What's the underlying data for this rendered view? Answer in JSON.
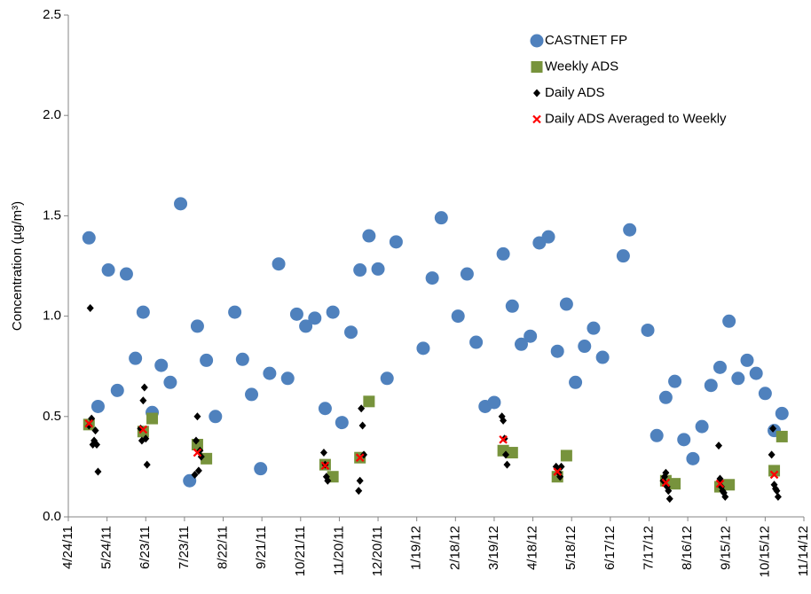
{
  "chart_data": {
    "type": "scatter",
    "y_label": "Concentration (µg/m³)",
    "ylim": [
      0,
      2.5
    ],
    "yticks": [
      {
        "value": 0,
        "label": "0.0"
      },
      0.5,
      {
        "value": 1,
        "label": "1.0"
      },
      1.5,
      {
        "value": 2,
        "label": "2.0"
      },
      2.5
    ],
    "xlim": [
      "2011-04-24",
      "2012-11-14"
    ],
    "xticks": [
      {
        "value": "2011-04-24",
        "label": "4/24/11"
      },
      {
        "value": "2011-05-24",
        "label": "5/24/11"
      },
      {
        "value": "2011-06-23",
        "label": "6/23/11"
      },
      {
        "value": "2011-07-23",
        "label": "7/23/11"
      },
      {
        "value": "2011-08-22",
        "label": "8/22/11"
      },
      {
        "value": "2011-09-21",
        "label": "9/21/11"
      },
      {
        "value": "2011-10-21",
        "label": "10/21/11"
      },
      {
        "value": "2011-11-20",
        "label": "11/20/11"
      },
      {
        "value": "2011-12-20",
        "label": "12/20/11"
      },
      {
        "value": "2012-01-19",
        "label": "1/19/12"
      },
      {
        "value": "2012-02-18",
        "label": "2/18/12"
      },
      {
        "value": "2012-03-19",
        "label": "3/19/12"
      },
      {
        "value": "2012-04-18",
        "label": "4/18/12"
      },
      {
        "value": "2012-05-18",
        "label": "5/18/12"
      },
      {
        "value": "2012-06-17",
        "label": "6/17/12"
      },
      {
        "value": "2012-07-17",
        "label": "7/17/12"
      },
      {
        "value": "2012-08-16",
        "label": "8/16/12"
      },
      {
        "value": "2012-09-15",
        "label": "9/15/12"
      },
      {
        "value": "2012-10-15",
        "label": "10/15/12"
      },
      {
        "value": "2012-11-14",
        "label": "11/14/12"
      }
    ],
    "grid": false,
    "legend": "upper right",
    "series": [
      {
        "name": "CASTNET FP",
        "color": "#4f81bd",
        "marker": "circle",
        "x": [
          "2011-05-10",
          "2011-05-17",
          "2011-05-25",
          "2011-06-01",
          "2011-06-08",
          "2011-06-15",
          "2011-06-21",
          "2011-06-28",
          "2011-07-05",
          "2011-07-12",
          "2011-07-20",
          "2011-07-27",
          "2011-08-02",
          "2011-08-09",
          "2011-08-16",
          "2011-08-31",
          "2011-09-06",
          "2011-09-13",
          "2011-09-20",
          "2011-09-27",
          "2011-10-04",
          "2011-10-11",
          "2011-10-18",
          "2011-10-25",
          "2011-11-01",
          "2011-11-09",
          "2011-11-15",
          "2011-11-22",
          "2011-11-29",
          "2011-12-06",
          "2011-12-13",
          "2011-12-20",
          "2011-12-27",
          "2012-01-03",
          "2012-01-24",
          "2012-01-31",
          "2012-02-07",
          "2012-02-20",
          "2012-02-27",
          "2012-03-05",
          "2012-03-12",
          "2012-03-19",
          "2012-03-26",
          "2012-04-02",
          "2012-04-09",
          "2012-04-16",
          "2012-04-23",
          "2012-04-30",
          "2012-05-07",
          "2012-05-14",
          "2012-05-21",
          "2012-05-28",
          "2012-06-04",
          "2012-06-11",
          "2012-06-27",
          "2012-07-02",
          "2012-07-16",
          "2012-07-23",
          "2012-07-30",
          "2012-08-06",
          "2012-08-13",
          "2012-08-20",
          "2012-08-27",
          "2012-09-03",
          "2012-09-10",
          "2012-09-17",
          "2012-09-24",
          "2012-10-01",
          "2012-10-08",
          "2012-10-15",
          "2012-10-22",
          "2012-10-28"
        ],
        "values": [
          1.39,
          0.55,
          1.23,
          0.63,
          1.21,
          0.79,
          1.02,
          0.52,
          0.755,
          0.67,
          1.56,
          0.18,
          0.95,
          0.78,
          0.5,
          1.02,
          0.785,
          0.61,
          0.24,
          0.715,
          1.26,
          0.69,
          1.01,
          0.95,
          0.99,
          0.54,
          1.02,
          0.47,
          0.92,
          1.23,
          1.4,
          1.235,
          0.69,
          1.37,
          0.84,
          1.19,
          1.49,
          1.0,
          1.21,
          0.87,
          0.55,
          0.57,
          1.31,
          1.05,
          0.86,
          0.9,
          1.365,
          1.395,
          0.825,
          1.06,
          0.67,
          0.85,
          0.94,
          0.795,
          1.3,
          1.43,
          0.93,
          0.405,
          0.595,
          0.675,
          0.385,
          0.29,
          0.45,
          0.655,
          0.745,
          0.975,
          0.69,
          0.78,
          0.715,
          0.615,
          0.43,
          0.515
        ]
      },
      {
        "name": "Weekly ADS",
        "color": "#77933c",
        "marker": "square",
        "x": [
          "2011-05-10",
          "2011-06-21",
          "2011-06-28",
          "2011-08-02",
          "2011-08-09",
          "2011-11-09",
          "2011-11-15",
          "2011-12-06",
          "2011-12-13",
          "2012-03-26",
          "2012-04-02",
          "2012-05-07",
          "2012-05-14",
          "2012-07-30",
          "2012-08-06",
          "2012-09-10",
          "2012-09-17",
          "2012-10-22",
          "2012-10-28"
        ],
        "values": [
          0.46,
          0.425,
          0.49,
          0.36,
          0.29,
          0.26,
          0.2,
          0.295,
          0.575,
          0.33,
          0.32,
          0.2,
          0.305,
          0.18,
          0.165,
          0.15,
          0.16,
          0.23,
          0.4
        ]
      },
      {
        "name": "Daily ADS",
        "color": "#000000",
        "marker": "diamond",
        "x": [
          "2011-05-10",
          "2011-05-11",
          "2011-05-12",
          "2011-05-13",
          "2011-05-14",
          "2011-05-15",
          "2011-05-16",
          "2011-05-17",
          "2011-06-19",
          "2011-06-20",
          "2011-06-21",
          "2011-06-22",
          "2011-06-23",
          "2011-06-24",
          "2011-07-31",
          "2011-08-01",
          "2011-08-02",
          "2011-08-03",
          "2011-08-04",
          "2011-08-05",
          "2011-11-08",
          "2011-11-09",
          "2011-11-10",
          "2011-11-11",
          "2011-12-05",
          "2011-12-06",
          "2011-12-07",
          "2011-12-08",
          "2011-12-09",
          "2012-03-25",
          "2012-03-26",
          "2012-03-27",
          "2012-03-28",
          "2012-03-29",
          "2012-05-06",
          "2012-05-07",
          "2012-05-08",
          "2012-05-09",
          "2012-05-10",
          "2012-07-28",
          "2012-07-29",
          "2012-07-30",
          "2012-07-31",
          "2012-08-01",
          "2012-08-02",
          "2012-09-09",
          "2012-09-10",
          "2012-09-11",
          "2012-09-12",
          "2012-09-13",
          "2012-09-14",
          "2012-10-20",
          "2012-10-21",
          "2012-10-22",
          "2012-10-23",
          "2012-10-24",
          "2012-10-25"
        ],
        "values": [
          0.455,
          1.04,
          0.49,
          0.36,
          0.38,
          0.43,
          0.36,
          0.225,
          0.44,
          0.38,
          0.58,
          0.645,
          0.39,
          0.26,
          0.21,
          0.38,
          0.5,
          0.23,
          0.33,
          0.3,
          0.32,
          0.26,
          0.2,
          0.18,
          0.13,
          0.18,
          0.54,
          0.455,
          0.31,
          0.5,
          0.48,
          0.39,
          0.31,
          0.26,
          0.25,
          0.24,
          0.22,
          0.2,
          0.25,
          0.18,
          0.2,
          0.22,
          0.15,
          0.13,
          0.09,
          0.355,
          0.19,
          0.15,
          0.13,
          0.12,
          0.1,
          0.31,
          0.44,
          0.16,
          0.14,
          0.13,
          0.1
        ]
      },
      {
        "name": "Daily ADS Averaged to Weekly",
        "color": "#ff0000",
        "marker": "x",
        "x": [
          "2011-05-10",
          "2011-06-21",
          "2011-08-02",
          "2011-11-09",
          "2011-12-06",
          "2012-03-26",
          "2012-05-07",
          "2012-07-30",
          "2012-09-10",
          "2012-10-22"
        ],
        "values": [
          0.465,
          0.435,
          0.32,
          0.255,
          0.295,
          0.385,
          0.225,
          0.17,
          0.165,
          0.21
        ]
      }
    ]
  }
}
